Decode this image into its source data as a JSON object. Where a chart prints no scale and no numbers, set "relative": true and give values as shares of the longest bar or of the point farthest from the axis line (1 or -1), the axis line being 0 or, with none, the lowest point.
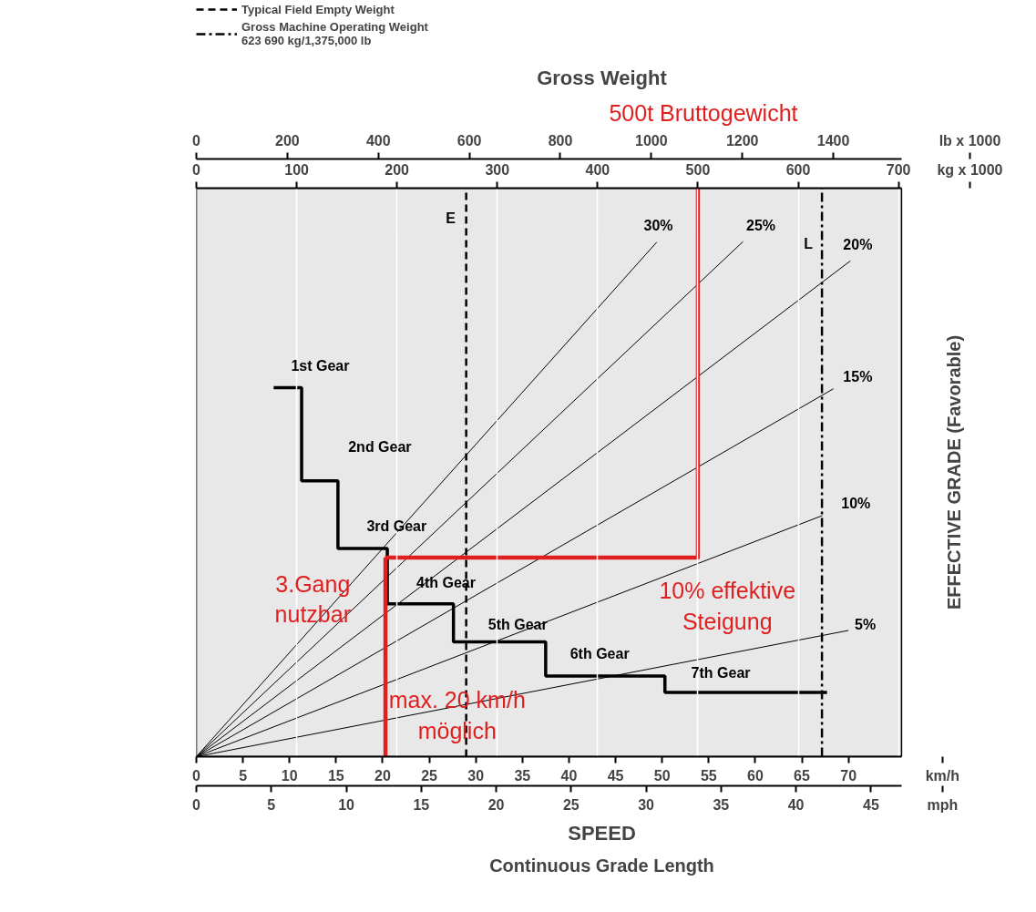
{
  "chart_data": {
    "type": "line",
    "title": "Gross Weight",
    "xlabel": "km/h",
    "x2label": "kg x 1000",
    "ylabel": "EFFECTIVE GRADE (Favorable)",
    "relative": true,
    "xlim": [
      0,
      75.7
    ],
    "xticks": [
      0,
      5,
      10,
      15,
      20,
      25,
      30,
      35,
      40,
      45,
      50,
      55,
      60,
      65,
      70
    ],
    "x2lim": [
      0,
      703
    ],
    "x2ticks": [
      0,
      100,
      200,
      300,
      400,
      500,
      600,
      700
    ],
    "grid": "x",
    "legend": "top left",
    "series": [
      {
        "type": "step",
        "color": "#000000",
        "x": [
          8.3,
          11.3,
          15.2,
          20.5,
          27.6,
          37.5,
          50.3,
          67.7
        ],
        "values": [
          0.649,
          0.485,
          0.366,
          0.269,
          0.202,
          0.142,
          0.113,
          0.113
        ]
      },
      {
        "axis": "x2",
        "color": "#000000",
        "x": [
          0,
          459
        ],
        "values": [
          0,
          0.905
        ]
      },
      {
        "axis": "x2",
        "color": "#000000",
        "x": [
          0,
          545
        ],
        "values": [
          0,
          0.906
        ]
      },
      {
        "axis": "x2",
        "color": "#000000",
        "x": [
          0,
          652
        ],
        "values": [
          0,
          0.872
        ]
      },
      {
        "axis": "x2",
        "color": "#000000",
        "x": [
          0,
          635
        ],
        "values": [
          0,
          0.647
        ]
      },
      {
        "axis": "x2",
        "color": "#000000",
        "x": [
          0,
          624
        ],
        "values": [
          0,
          0.424
        ]
      },
      {
        "axis": "x2",
        "color": "#000000",
        "x": [
          0,
          650
        ],
        "values": [
          0,
          0.222
        ]
      },
      {
        "axis": "x2",
        "name": "Typical Field Empty Weight",
        "line_style": "dashed",
        "color": "#000000",
        "x": [
          269,
          269
        ],
        "values": [
          0,
          1.0
        ]
      },
      {
        "axis": "x2",
        "name": "Gross Machine Operating Weight\n623 690 kg/1,375,000 lb",
        "line_style": "dashdot",
        "color": "#000000",
        "x": [
          623.69,
          623.69
        ],
        "values": [
          0,
          1.0
        ]
      },
      {
        "axis": "x2",
        "color": "#e02020",
        "x": [
          500,
          500,
          188
        ],
        "values": [
          1.0,
          0.35,
          0.35
        ]
      },
      {
        "color": "#e02020",
        "x": [
          20.3,
          20.3
        ],
        "values": [
          0.35,
          0
        ]
      }
    ],
    "annotations": [
      "E",
      "L",
      "30%",
      "25%",
      "20%",
      "15%",
      "10%",
      "5%",
      "1st Gear",
      "2nd Gear",
      "3rd Gear",
      "4th Gear",
      "5th Gear",
      "6th Gear",
      "7th Gear",
      "500t Bruttogewicht",
      "3.Gang\nnutzbar",
      "10% effektive\nSteigung",
      "max. 20 km/h\nmöglich",
      "0",
      "5",
      "10",
      "15",
      "20",
      "25",
      "30",
      "35",
      "40",
      "45",
      "mph",
      "0",
      "200",
      "400",
      "600",
      "800",
      "1000",
      "1200",
      "1400",
      "lb x 1000",
      "SPEED",
      "Continuous Grade Length"
    ]
  }
}
